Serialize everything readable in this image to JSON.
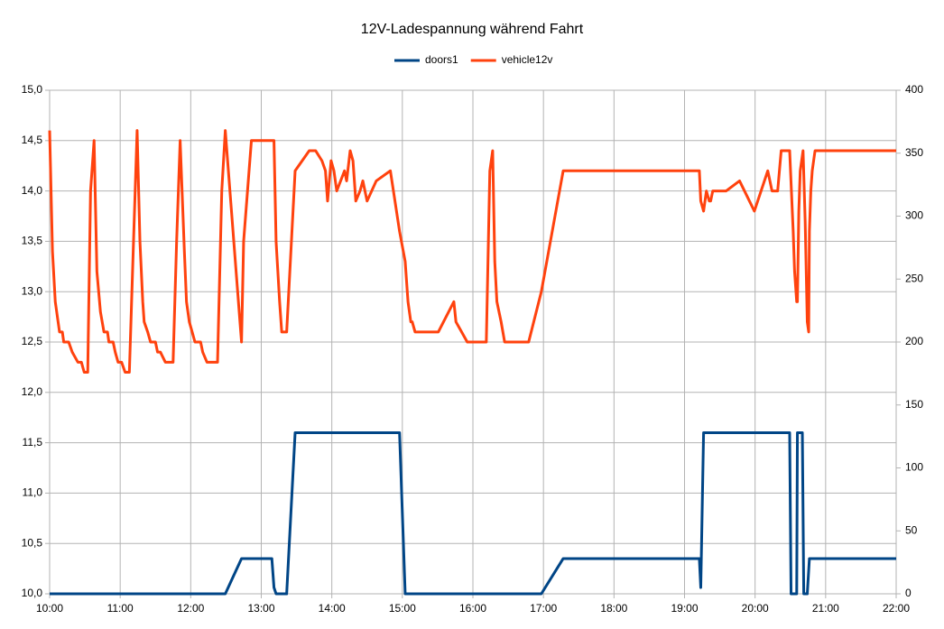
{
  "chart_data": {
    "type": "line",
    "title": "12V-Ladespannung während Fahrt",
    "xlim": [
      10,
      22
    ],
    "xticks": [
      {
        "value": 10,
        "label": "10:00"
      },
      {
        "value": 11,
        "label": "11:00"
      },
      {
        "value": 12,
        "label": "12:00"
      },
      {
        "value": 13,
        "label": "13:00"
      },
      {
        "value": 14,
        "label": "14:00"
      },
      {
        "value": 15,
        "label": "15:00"
      },
      {
        "value": 16,
        "label": "16:00"
      },
      {
        "value": 17,
        "label": "17:00"
      },
      {
        "value": 18,
        "label": "18:00"
      },
      {
        "value": 19,
        "label": "19:00"
      },
      {
        "value": 20,
        "label": "20:00"
      },
      {
        "value": 21,
        "label": "21:00"
      },
      {
        "value": 22,
        "label": "22:00"
      }
    ],
    "ylim": [
      10,
      15
    ],
    "yticks": [
      {
        "value": 10,
        "label": "10,0"
      },
      {
        "value": 10.5,
        "label": "10,5"
      },
      {
        "value": 11,
        "label": "11,0"
      },
      {
        "value": 11.5,
        "label": "11,5"
      },
      {
        "value": 12,
        "label": "12,0"
      },
      {
        "value": 12.5,
        "label": "12,5"
      },
      {
        "value": 13,
        "label": "13,0"
      },
      {
        "value": 13.5,
        "label": "13,5"
      },
      {
        "value": 14,
        "label": "14,0"
      },
      {
        "value": 14.5,
        "label": "14,5"
      },
      {
        "value": 15,
        "label": "15,0"
      }
    ],
    "y2lim": [
      0,
      400
    ],
    "y2ticks": [
      0,
      50,
      100,
      150,
      200,
      250,
      300,
      350,
      400
    ],
    "grid": true,
    "legend": "top",
    "series": [
      {
        "name": "doors1",
        "color": "#004586",
        "axis": "y2",
        "x": [
          10.0,
          12.49,
          12.72,
          13.15,
          13.18,
          13.21,
          13.36,
          13.48,
          14.96,
          15.04,
          16.97,
          17.28,
          19.21,
          19.23,
          19.27,
          20.49,
          20.51,
          20.59,
          20.6,
          20.67,
          20.69,
          20.74,
          20.77,
          22.0
        ],
        "values": [
          0,
          0,
          28,
          28,
          5,
          0,
          0,
          128,
          128,
          0,
          0,
          28,
          28,
          5,
          128,
          128,
          0,
          0,
          128,
          128,
          0,
          0,
          28,
          28
        ]
      },
      {
        "name": "vehicle12v",
        "color": "#ff420e",
        "x": [
          10.0,
          10.04,
          10.08,
          10.12,
          10.14,
          10.18,
          10.2,
          10.27,
          10.32,
          10.4,
          10.45,
          10.49,
          10.54,
          10.58,
          10.63,
          10.67,
          10.72,
          10.77,
          10.82,
          10.84,
          10.9,
          10.93,
          10.97,
          11.02,
          11.07,
          11.13,
          11.18,
          11.24,
          11.28,
          11.32,
          11.34,
          11.39,
          11.43,
          11.5,
          11.53,
          11.57,
          11.64,
          11.75,
          11.8,
          11.85,
          11.91,
          11.94,
          11.98,
          12.02,
          12.06,
          12.14,
          12.17,
          12.23,
          12.38,
          12.44,
          12.49,
          12.72,
          12.75,
          12.86,
          13.18,
          13.21,
          13.26,
          13.29,
          13.36,
          13.48,
          13.58,
          13.68,
          13.77,
          13.86,
          13.91,
          13.94,
          13.99,
          14.03,
          14.07,
          14.18,
          14.21,
          14.26,
          14.3,
          14.34,
          14.4,
          14.44,
          14.5,
          14.63,
          14.83,
          14.96,
          15.04,
          15.08,
          15.12,
          15.14,
          15.18,
          15.51,
          15.73,
          15.76,
          15.92,
          16.19,
          16.24,
          16.28,
          16.31,
          16.34,
          16.4,
          16.45,
          16.79,
          16.97,
          17.28,
          19.21,
          19.23,
          19.27,
          19.31,
          19.35,
          19.37,
          19.4,
          19.59,
          19.78,
          19.99,
          20.18,
          20.24,
          20.32,
          20.37,
          20.49,
          20.54,
          20.56,
          20.59,
          20.6,
          20.62,
          20.64,
          20.68,
          20.71,
          20.74,
          20.76,
          20.77,
          20.79,
          20.81,
          20.85,
          22.0
        ],
        "values": [
          14.6,
          13.4,
          12.9,
          12.7,
          12.6,
          12.6,
          12.5,
          12.5,
          12.4,
          12.3,
          12.3,
          12.2,
          12.2,
          14.0,
          14.5,
          13.2,
          12.8,
          12.6,
          12.6,
          12.5,
          12.5,
          12.4,
          12.3,
          12.3,
          12.2,
          12.2,
          13.3,
          14.6,
          13.5,
          12.9,
          12.7,
          12.6,
          12.5,
          12.5,
          12.4,
          12.4,
          12.3,
          12.3,
          13.5,
          14.5,
          13.4,
          12.9,
          12.7,
          12.6,
          12.5,
          12.5,
          12.4,
          12.3,
          12.3,
          14.0,
          14.6,
          12.5,
          13.5,
          14.5,
          14.5,
          13.5,
          12.9,
          12.6,
          12.6,
          14.2,
          14.3,
          14.4,
          14.4,
          14.3,
          14.2,
          13.9,
          14.3,
          14.2,
          14.0,
          14.2,
          14.1,
          14.4,
          14.3,
          13.9,
          14.0,
          14.1,
          13.9,
          14.1,
          14.2,
          13.6,
          13.3,
          12.9,
          12.7,
          12.7,
          12.6,
          12.6,
          12.9,
          12.7,
          12.5,
          12.5,
          14.2,
          14.4,
          13.3,
          12.9,
          12.7,
          12.5,
          12.5,
          13.0,
          14.2,
          14.2,
          13.9,
          13.8,
          14.0,
          13.9,
          13.9,
          14.0,
          14.0,
          14.1,
          13.8,
          14.2,
          14.0,
          14.0,
          14.4,
          14.4,
          13.6,
          13.2,
          12.9,
          12.9,
          13.8,
          14.2,
          14.4,
          13.7,
          12.7,
          12.6,
          13.6,
          14.0,
          14.2,
          14.4,
          14.4
        ]
      }
    ]
  }
}
